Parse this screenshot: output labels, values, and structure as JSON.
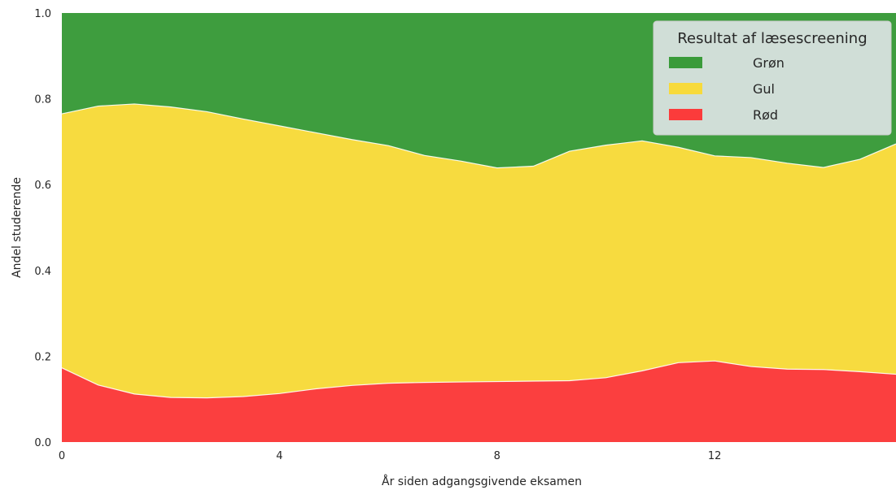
{
  "chart_data": {
    "type": "area",
    "stacked": true,
    "x": [
      0,
      0.667,
      1.333,
      2.0,
      2.667,
      3.333,
      4.0,
      4.667,
      5.333,
      6.0,
      6.667,
      7.333,
      8.0,
      8.667,
      9.333,
      10.0,
      10.667,
      11.333,
      12.0,
      12.667,
      13.333,
      14.0,
      14.667,
      15.333
    ],
    "series": [
      {
        "name": "Rød",
        "color": "#fb3b3b",
        "values": [
          0.173,
          0.133,
          0.112,
          0.104,
          0.103,
          0.106,
          0.113,
          0.124,
          0.132,
          0.137,
          0.139,
          0.14,
          0.141,
          0.142,
          0.143,
          0.15,
          0.166,
          0.185,
          0.189,
          0.176,
          0.17,
          0.169,
          0.164,
          0.158
        ]
      },
      {
        "name": "Gul",
        "color": "#f7da3b",
        "values": [
          0.592,
          0.65,
          0.676,
          0.677,
          0.667,
          0.647,
          0.624,
          0.597,
          0.573,
          0.554,
          0.529,
          0.515,
          0.498,
          0.501,
          0.535,
          0.542,
          0.536,
          0.502,
          0.478,
          0.487,
          0.48,
          0.471,
          0.495,
          0.537
        ]
      },
      {
        "name": "Grøn",
        "color": "#3a9b3a",
        "values": [
          0.235,
          0.217,
          0.212,
          0.219,
          0.23,
          0.247,
          0.263,
          0.279,
          0.295,
          0.309,
          0.332,
          0.345,
          0.361,
          0.357,
          0.322,
          0.308,
          0.298,
          0.313,
          0.333,
          0.337,
          0.35,
          0.36,
          0.341,
          0.305
        ]
      }
    ],
    "xlabel": "År siden adgangsgivende eksamen",
    "ylabel": "Andel studerende",
    "xlim": [
      0,
      15.333
    ],
    "ylim": [
      0,
      1.0
    ],
    "xticks": [
      0,
      4,
      8,
      12
    ],
    "yticks": [
      0.0,
      0.2,
      0.4,
      0.6,
      0.8,
      1.0
    ],
    "xtick_labels": [
      "0",
      "4",
      "8",
      "12"
    ],
    "ytick_labels": [
      "0.0",
      "0.2",
      "0.4",
      "0.6",
      "0.8",
      "1.0"
    ],
    "grid": true,
    "legend": {
      "title": "Resultat af læsescreening",
      "placement": "top-right",
      "entries": [
        "Grøn",
        "Gul",
        "Rød"
      ]
    }
  }
}
